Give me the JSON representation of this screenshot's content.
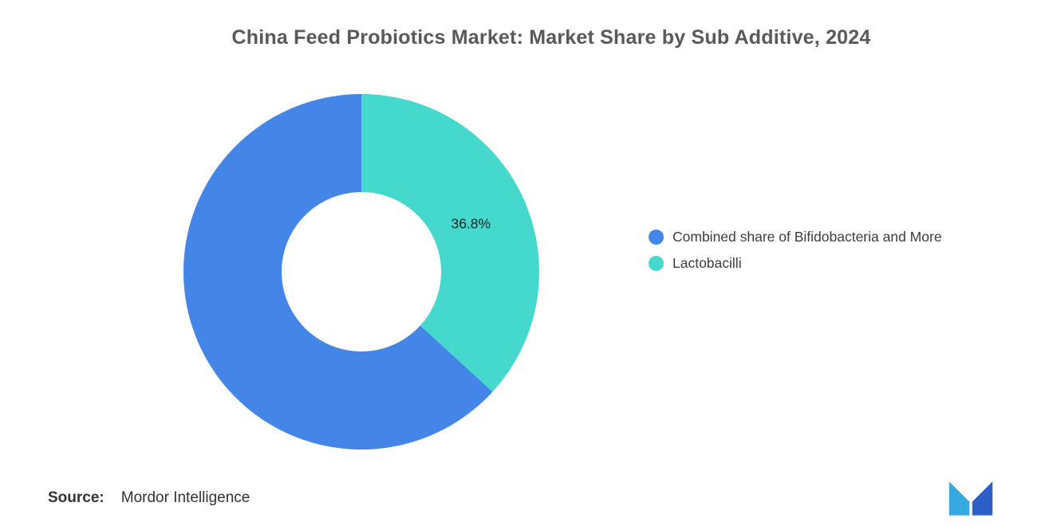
{
  "chart_data": {
    "type": "pie",
    "subtype": "donut",
    "title": "China Feed Probiotics Market: Market Share by Sub Additive, 2024",
    "direction": "clockwise",
    "start_angle_deg": 0,
    "segments": [
      {
        "label": "Lactobacilli",
        "value": 36.8,
        "color": "#45D8CD",
        "data_label": "36.8%"
      },
      {
        "label": "Combined share of Bifidobacteria and More",
        "value": 63.2,
        "color": "#4486E8",
        "data_label": ""
      }
    ],
    "legend": {
      "position": "right",
      "order": [
        1,
        0
      ]
    },
    "hole_radius_ratio": 0.45
  },
  "footer": {
    "source_label": "Source:",
    "source_value": "Mordor Intelligence"
  },
  "logo": {
    "name": "mordor-intelligence-logo",
    "colors": {
      "light": "#36A9E1",
      "dark": "#2D5FC8"
    }
  }
}
